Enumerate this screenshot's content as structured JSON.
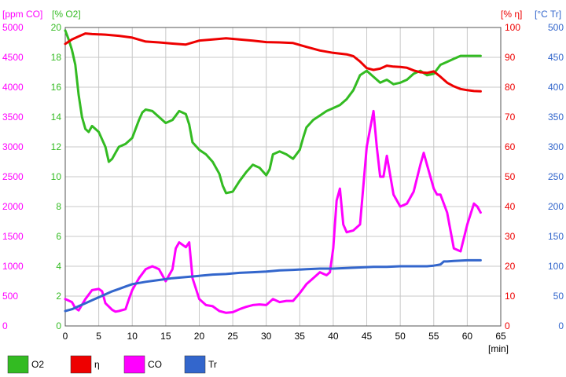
{
  "chart_data": {
    "type": "line",
    "title": "",
    "xlabel": "[min]",
    "xlim": [
      0,
      65
    ],
    "x_ticks": [
      0,
      5,
      10,
      15,
      20,
      25,
      30,
      35,
      40,
      45,
      50,
      55,
      60,
      65
    ],
    "grid": true,
    "legend_position": "bottom",
    "axes": [
      {
        "id": "co",
        "label": "[ppm CO]",
        "side": "left",
        "offset": 0,
        "color": "#ff00ff",
        "range": [
          0,
          5000
        ],
        "ticks": [
          0,
          500,
          1000,
          1500,
          2000,
          2500,
          3000,
          3500,
          4000,
          4500,
          5000
        ]
      },
      {
        "id": "o2",
        "label": "[% O2]",
        "side": "left",
        "offset": 1,
        "color": "#33bb22",
        "range": [
          0,
          20
        ],
        "ticks": [
          0,
          2,
          4,
          6,
          8,
          10,
          12,
          14,
          16,
          18,
          20
        ]
      },
      {
        "id": "eta",
        "label": "[% η]",
        "side": "right",
        "offset": 0,
        "color": "#ee0000",
        "range": [
          0,
          100
        ],
        "ticks": [
          0,
          10,
          20,
          30,
          40,
          50,
          60,
          70,
          80,
          90,
          100
        ]
      },
      {
        "id": "tr",
        "label": "[°C Tr]",
        "side": "right",
        "offset": 1,
        "color": "#3366cc",
        "range": [
          0,
          500
        ],
        "ticks": [
          0,
          50,
          100,
          150,
          200,
          250,
          300,
          350,
          400,
          450,
          500
        ]
      }
    ],
    "series": [
      {
        "name": "O2",
        "axis": "o2",
        "color": "#33bb22",
        "points": [
          [
            0,
            19.8
          ],
          [
            0.5,
            19.2
          ],
          [
            1,
            18.5
          ],
          [
            1.5,
            17.5
          ],
          [
            2,
            15.5
          ],
          [
            2.5,
            14
          ],
          [
            3,
            13.2
          ],
          [
            3.5,
            13
          ],
          [
            4,
            13.4
          ],
          [
            5,
            13
          ],
          [
            6,
            12
          ],
          [
            6.5,
            11
          ],
          [
            7,
            11.2
          ],
          [
            7.5,
            11.6
          ],
          [
            8,
            12
          ],
          [
            9,
            12.2
          ],
          [
            10,
            12.6
          ],
          [
            10.5,
            13.2
          ],
          [
            11,
            13.8
          ],
          [
            11.5,
            14.3
          ],
          [
            12,
            14.5
          ],
          [
            13,
            14.4
          ],
          [
            14,
            14
          ],
          [
            15,
            13.6
          ],
          [
            16,
            13.8
          ],
          [
            17,
            14.4
          ],
          [
            18,
            14.2
          ],
          [
            18.5,
            13.5
          ],
          [
            19,
            12.3
          ],
          [
            20,
            11.8
          ],
          [
            21,
            11.5
          ],
          [
            22,
            11
          ],
          [
            23,
            10.2
          ],
          [
            23.5,
            9.4
          ],
          [
            24,
            8.9
          ],
          [
            25,
            9
          ],
          [
            26,
            9.7
          ],
          [
            27,
            10.3
          ],
          [
            28,
            10.8
          ],
          [
            29,
            10.6
          ],
          [
            30,
            10.1
          ],
          [
            30.5,
            10.5
          ],
          [
            31,
            11.5
          ],
          [
            32,
            11.7
          ],
          [
            33,
            11.5
          ],
          [
            34,
            11.2
          ],
          [
            35,
            11.8
          ],
          [
            35.5,
            12.6
          ],
          [
            36,
            13.3
          ],
          [
            37,
            13.8
          ],
          [
            38,
            14.1
          ],
          [
            39,
            14.4
          ],
          [
            40,
            14.6
          ],
          [
            41,
            14.8
          ],
          [
            42,
            15.2
          ],
          [
            43,
            15.8
          ],
          [
            44,
            16.8
          ],
          [
            45,
            17.1
          ],
          [
            46,
            16.7
          ],
          [
            47,
            16.3
          ],
          [
            48,
            16.5
          ],
          [
            49,
            16.2
          ],
          [
            50,
            16.3
          ],
          [
            51,
            16.5
          ],
          [
            52,
            16.9
          ],
          [
            53,
            17.1
          ],
          [
            54,
            16.8
          ],
          [
            55,
            16.9
          ],
          [
            56,
            17.5
          ],
          [
            57,
            17.7
          ],
          [
            58,
            17.9
          ],
          [
            59,
            18.1
          ],
          [
            60,
            18.1
          ],
          [
            61,
            18.1
          ],
          [
            62,
            18.1
          ]
        ]
      },
      {
        "name": "η",
        "axis": "eta",
        "color": "#ee0000",
        "points": [
          [
            0,
            94.5
          ],
          [
            1,
            96
          ],
          [
            2,
            97
          ],
          [
            3,
            98
          ],
          [
            4,
            97.8
          ],
          [
            6,
            97.6
          ],
          [
            8,
            97.2
          ],
          [
            10,
            96.6
          ],
          [
            12,
            95.3
          ],
          [
            14,
            95
          ],
          [
            16,
            94.6
          ],
          [
            18,
            94.3
          ],
          [
            20,
            95.6
          ],
          [
            22,
            96
          ],
          [
            24,
            96.4
          ],
          [
            26,
            96
          ],
          [
            28,
            95.6
          ],
          [
            30,
            95.1
          ],
          [
            32,
            95
          ],
          [
            34,
            94.8
          ],
          [
            36,
            93.5
          ],
          [
            38,
            92.3
          ],
          [
            40,
            91.5
          ],
          [
            42,
            91
          ],
          [
            43,
            90.4
          ],
          [
            44,
            88.6
          ],
          [
            45,
            86.4
          ],
          [
            46,
            85.8
          ],
          [
            47,
            86.2
          ],
          [
            48,
            87.2
          ],
          [
            49,
            86.9
          ],
          [
            50,
            86.8
          ],
          [
            51,
            86.5
          ],
          [
            52,
            85.6
          ],
          [
            53,
            85
          ],
          [
            54,
            84.8
          ],
          [
            55,
            85.3
          ],
          [
            56,
            83.5
          ],
          [
            57,
            81.5
          ],
          [
            58,
            80.3
          ],
          [
            59,
            79.4
          ],
          [
            60,
            79
          ],
          [
            61,
            78.7
          ],
          [
            62,
            78.6
          ]
        ]
      },
      {
        "name": "CO",
        "axis": "co",
        "color": "#ff00ff",
        "points": [
          [
            0,
            450
          ],
          [
            1,
            400
          ],
          [
            1.5,
            300
          ],
          [
            2,
            260
          ],
          [
            3,
            450
          ],
          [
            4,
            600
          ],
          [
            5,
            620
          ],
          [
            5.5,
            580
          ],
          [
            6,
            380
          ],
          [
            7,
            270
          ],
          [
            7.5,
            240
          ],
          [
            8,
            250
          ],
          [
            9,
            280
          ],
          [
            9.5,
            450
          ],
          [
            10,
            600
          ],
          [
            11,
            800
          ],
          [
            12,
            950
          ],
          [
            13,
            1000
          ],
          [
            14,
            950
          ],
          [
            15,
            750
          ],
          [
            16,
            950
          ],
          [
            16.5,
            1300
          ],
          [
            17,
            1400
          ],
          [
            18,
            1320
          ],
          [
            18.5,
            1400
          ],
          [
            19,
            800
          ],
          [
            20,
            450
          ],
          [
            21,
            350
          ],
          [
            22,
            330
          ],
          [
            23,
            250
          ],
          [
            24,
            220
          ],
          [
            25,
            230
          ],
          [
            26,
            280
          ],
          [
            27,
            320
          ],
          [
            28,
            350
          ],
          [
            29,
            360
          ],
          [
            30,
            350
          ],
          [
            31,
            450
          ],
          [
            32,
            400
          ],
          [
            33,
            420
          ],
          [
            34,
            420
          ],
          [
            35,
            550
          ],
          [
            36,
            700
          ],
          [
            37,
            800
          ],
          [
            38,
            900
          ],
          [
            39,
            850
          ],
          [
            39.5,
            900
          ],
          [
            40,
            1300
          ],
          [
            40.5,
            2100
          ],
          [
            41,
            2300
          ],
          [
            41.5,
            1700
          ],
          [
            42,
            1570
          ],
          [
            43,
            1600
          ],
          [
            44,
            1700
          ],
          [
            45,
            3000
          ],
          [
            46,
            3600
          ],
          [
            46.5,
            3000
          ],
          [
            47,
            2500
          ],
          [
            47.5,
            2500
          ],
          [
            48,
            2850
          ],
          [
            49,
            2200
          ],
          [
            50,
            2000
          ],
          [
            51,
            2050
          ],
          [
            52,
            2250
          ],
          [
            53,
            2700
          ],
          [
            53.5,
            2900
          ],
          [
            54,
            2700
          ],
          [
            55,
            2300
          ],
          [
            55.5,
            2200
          ],
          [
            56,
            2200
          ],
          [
            57,
            1900
          ],
          [
            58,
            1300
          ],
          [
            59,
            1250
          ],
          [
            60,
            1700
          ],
          [
            61,
            2050
          ],
          [
            61.5,
            2000
          ],
          [
            62,
            1900
          ]
        ]
      },
      {
        "name": "Tr",
        "axis": "tr",
        "color": "#3366cc",
        "points": [
          [
            0,
            25
          ],
          [
            1,
            28
          ],
          [
            2,
            33
          ],
          [
            3,
            38
          ],
          [
            4,
            43
          ],
          [
            5,
            48
          ],
          [
            6,
            53
          ],
          [
            7,
            58
          ],
          [
            8,
            62
          ],
          [
            9,
            66
          ],
          [
            10,
            70
          ],
          [
            12,
            74
          ],
          [
            14,
            77
          ],
          [
            16,
            80
          ],
          [
            18,
            82
          ],
          [
            20,
            84
          ],
          [
            22,
            86
          ],
          [
            24,
            87
          ],
          [
            26,
            89
          ],
          [
            28,
            90
          ],
          [
            30,
            91
          ],
          [
            32,
            93
          ],
          [
            34,
            94
          ],
          [
            36,
            95
          ],
          [
            38,
            96
          ],
          [
            40,
            96
          ],
          [
            42,
            97
          ],
          [
            44,
            98
          ],
          [
            46,
            99
          ],
          [
            48,
            99
          ],
          [
            50,
            100
          ],
          [
            52,
            100
          ],
          [
            54,
            100
          ],
          [
            55,
            101
          ],
          [
            56,
            103
          ],
          [
            56.5,
            108
          ],
          [
            57,
            108
          ],
          [
            58,
            109
          ],
          [
            60,
            110
          ],
          [
            62,
            110
          ]
        ]
      }
    ]
  }
}
